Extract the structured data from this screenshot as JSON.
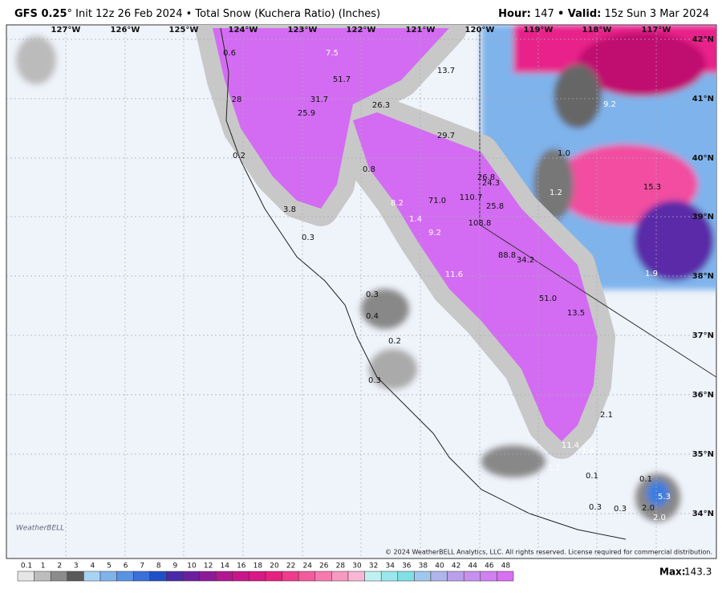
{
  "header": {
    "model": "GFS 0.25",
    "degree": "°",
    "description": "Init 12z 26 Feb 2024 • Total Snow (Kuchera Ratio) (Inches)",
    "hour_label": "Hour:",
    "hour": "147",
    "valid_label": "• Valid:",
    "valid": "15z Sun 3 Mar 2024"
  },
  "map": {
    "longitudes": [
      "127°W",
      "126°W",
      "125°W",
      "124°W",
      "123°W",
      "122°W",
      "121°W",
      "120°W",
      "119°W",
      "118°W",
      "117°W"
    ],
    "latitudes": [
      "42°N",
      "41°N",
      "40°N",
      "39°N",
      "38°N",
      "37°N",
      "36°N",
      "35°N",
      "34°N"
    ],
    "labels": [
      "7.5",
      "13.7",
      "51.7",
      "31.7",
      "26.3",
      "25.9",
      "28",
      "9.2",
      "29.7",
      "1.0",
      "0.2",
      "0.8",
      "26.8",
      "24.3",
      "15.3",
      "1.2",
      "110.7",
      "8.2",
      "71.0",
      "25.8",
      "3.8",
      "1.4",
      "108.8",
      "0.3",
      "9.2",
      "88.8",
      "34.2",
      "1.9",
      "11.6",
      "0.3",
      "51.0",
      "0.4",
      "13.5",
      "0.2",
      "0.3",
      "2.1",
      "11.4",
      "1.4",
      "1.1",
      "0.1",
      "0.1",
      "5.3",
      "0.3",
      "0.3",
      "2.0",
      "2.0",
      "0.6"
    ],
    "copyright": "© 2024 WeatherBELL Analytics, LLC. All rights reserved. License required for commercial distribution.",
    "logo": "WeatherBELL"
  },
  "legend": {
    "ticks": [
      0.1,
      1,
      2,
      3,
      4,
      5,
      6,
      7,
      8,
      9,
      10,
      12,
      14,
      16,
      18,
      20,
      22,
      24,
      26,
      28,
      30,
      32,
      34,
      36,
      38,
      40,
      42,
      44,
      46,
      48
    ],
    "max_label": "Max:",
    "max": "143.3"
  }
}
